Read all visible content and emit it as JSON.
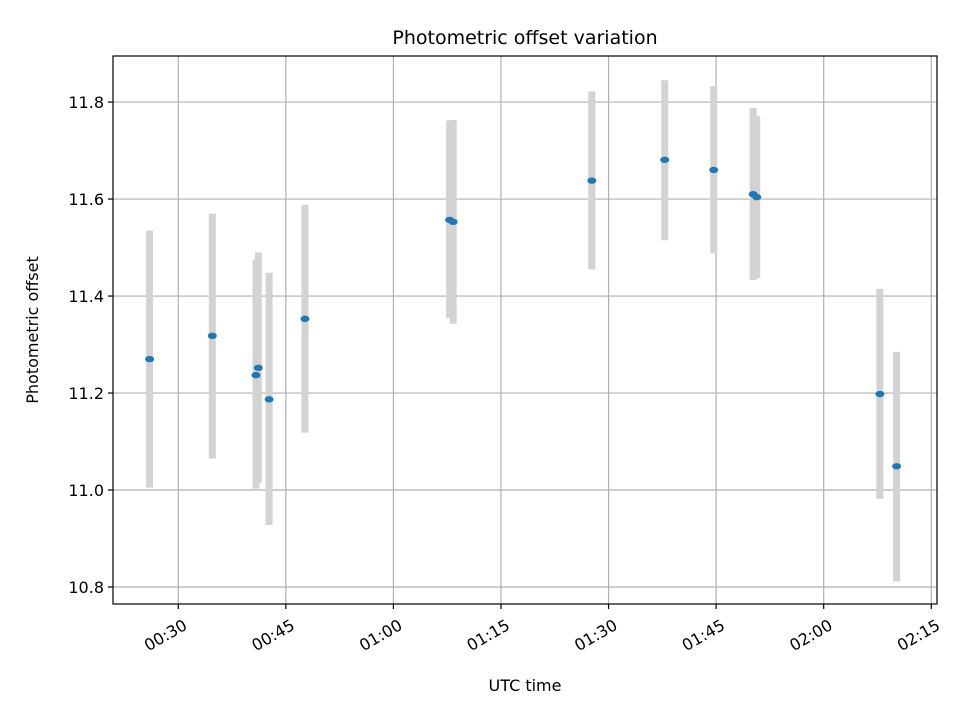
{
  "chart_data": {
    "type": "scatter",
    "title": "Photometric offset variation",
    "xlabel": "UTC time",
    "ylabel": "Photometric offset",
    "xlim": [
      "00:20:54",
      "02:15:48"
    ],
    "ylim": [
      10.765,
      11.895
    ],
    "grid": true,
    "x_ticks": [
      "00:30",
      "00:45",
      "01:00",
      "01:15",
      "01:30",
      "01:45",
      "02:00",
      "02:15"
    ],
    "y_ticks": [
      "10.8",
      "11.0",
      "11.2",
      "11.4",
      "11.6",
      "11.8"
    ],
    "colors": {
      "points": "#1f77b4",
      "errorbars": "#d3d3d3"
    },
    "points": [
      {
        "x": "00:26:00",
        "y": 11.27,
        "ylow": 11.005,
        "yhigh": 11.535
      },
      {
        "x": "00:34:45",
        "y": 11.318,
        "ylow": 11.065,
        "yhigh": 11.57
      },
      {
        "x": "00:40:50",
        "y": 11.237,
        "ylow": 11.003,
        "yhigh": 11.475
      },
      {
        "x": "00:41:10",
        "y": 11.252,
        "ylow": 11.015,
        "yhigh": 11.49
      },
      {
        "x": "00:42:40",
        "y": 11.187,
        "ylow": 10.928,
        "yhigh": 11.448
      },
      {
        "x": "00:47:40",
        "y": 11.353,
        "ylow": 11.118,
        "yhigh": 11.588
      },
      {
        "x": "01:07:50",
        "y": 11.557,
        "ylow": 11.355,
        "yhigh": 11.762
      },
      {
        "x": "01:08:20",
        "y": 11.553,
        "ylow": 11.343,
        "yhigh": 11.763
      },
      {
        "x": "01:27:40",
        "y": 11.638,
        "ylow": 11.455,
        "yhigh": 11.822
      },
      {
        "x": "01:37:50",
        "y": 11.681,
        "ylow": 11.515,
        "yhigh": 11.845
      },
      {
        "x": "01:44:40",
        "y": 11.66,
        "ylow": 11.488,
        "yhigh": 11.833
      },
      {
        "x": "01:50:10",
        "y": 11.61,
        "ylow": 11.433,
        "yhigh": 11.788
      },
      {
        "x": "01:50:40",
        "y": 11.604,
        "ylow": 11.437,
        "yhigh": 11.771
      },
      {
        "x": "02:07:50",
        "y": 11.198,
        "ylow": 10.982,
        "yhigh": 11.415
      },
      {
        "x": "02:10:10",
        "y": 11.049,
        "ylow": 10.812,
        "yhigh": 11.285
      }
    ]
  }
}
